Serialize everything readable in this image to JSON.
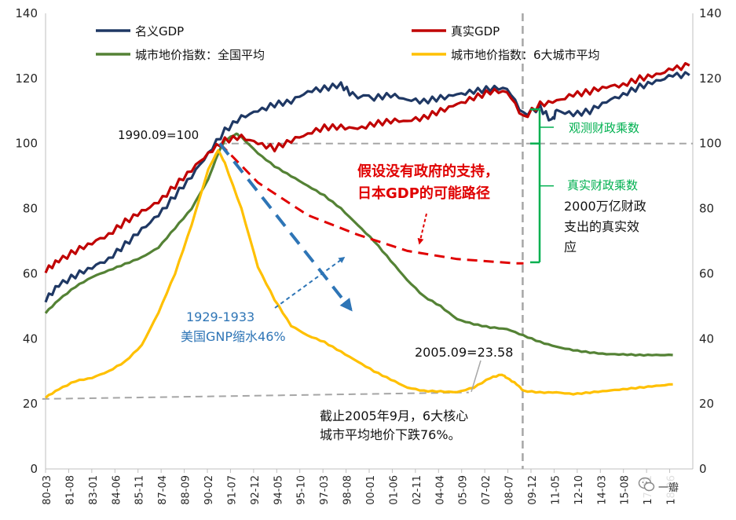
{
  "chart_data": {
    "type": "line",
    "title": "",
    "xlabel": "",
    "ylabel": "",
    "ylim": [
      0,
      140
    ],
    "y2lim": [
      0,
      140
    ],
    "y_ticks": [
      "0",
      "20",
      "40",
      "60",
      "80",
      "100",
      "120",
      "140"
    ],
    "x_ticks": [
      "80-03",
      "81-08",
      "83-01",
      "84-06",
      "85-11",
      "87-04",
      "88-09",
      "90-02",
      "91-07",
      "92-12",
      "94-05",
      "95-10",
      "97-03",
      "98-08",
      "00-01",
      "01-06",
      "02-11",
      "04-04",
      "05-09",
      "07-02",
      "08-07",
      "09-12",
      "11-05",
      "12-10",
      "14-03",
      "15-08",
      "17-01",
      "18-06"
    ],
    "grid": false,
    "legend_position": "top",
    "series": [
      {
        "name": "名义GDP",
        "color": "#1f3864",
        "values": [
          [
            1980.2,
            52
          ],
          [
            1981,
            56.5
          ],
          [
            1982,
            59.5
          ],
          [
            1983,
            62
          ],
          [
            1984,
            64.5
          ],
          [
            1985,
            69
          ],
          [
            1986,
            73.5
          ],
          [
            1987,
            78
          ],
          [
            1988,
            84
          ],
          [
            1989,
            90
          ],
          [
            1990,
            97
          ],
          [
            1991,
            104
          ],
          [
            1992,
            108
          ],
          [
            1993,
            110
          ],
          [
            1994,
            112
          ],
          [
            1995,
            113
          ],
          [
            1996,
            116
          ],
          [
            1997,
            117
          ],
          [
            1998,
            118
          ],
          [
            1998.7,
            115
          ],
          [
            2000,
            114
          ],
          [
            2001,
            115
          ],
          [
            2002,
            113.5
          ],
          [
            2003,
            113
          ],
          [
            2004,
            114
          ],
          [
            2005,
            115
          ],
          [
            2006,
            116
          ],
          [
            2007,
            117
          ],
          [
            2008,
            117
          ],
          [
            2009,
            109
          ],
          [
            2010,
            111
          ],
          [
            2010.7,
            107
          ],
          [
            2011,
            110
          ],
          [
            2012,
            109
          ],
          [
            2013,
            110
          ],
          [
            2014,
            113
          ],
          [
            2015,
            115
          ],
          [
            2016,
            117.5
          ],
          [
            2017,
            119
          ],
          [
            2018,
            121
          ],
          [
            2019,
            121
          ]
        ]
      },
      {
        "name": "真实GDP",
        "color": "#c00000",
        "values": [
          [
            1980.2,
            61
          ],
          [
            1981,
            64
          ],
          [
            1982,
            67
          ],
          [
            1983,
            69.5
          ],
          [
            1984,
            72
          ],
          [
            1985,
            76
          ],
          [
            1986,
            79
          ],
          [
            1987,
            82
          ],
          [
            1988,
            87
          ],
          [
            1989,
            92
          ],
          [
            1990,
            97
          ],
          [
            1991,
            101
          ],
          [
            1992,
            102
          ],
          [
            1993,
            100
          ],
          [
            1994,
            98.5
          ],
          [
            1995,
            101
          ],
          [
            1996,
            103
          ],
          [
            1997,
            105
          ],
          [
            1998,
            105
          ],
          [
            1999,
            104.5
          ],
          [
            2000,
            106
          ],
          [
            2001,
            107
          ],
          [
            2002,
            107
          ],
          [
            2003,
            108
          ],
          [
            2004,
            110
          ],
          [
            2005,
            112
          ],
          [
            2006,
            114
          ],
          [
            2007,
            116
          ],
          [
            2008,
            116
          ],
          [
            2009,
            108
          ],
          [
            2010,
            112
          ],
          [
            2011,
            113
          ],
          [
            2012,
            115
          ],
          [
            2013,
            116
          ],
          [
            2014,
            117.5
          ],
          [
            2015,
            118
          ],
          [
            2016,
            120
          ],
          [
            2017,
            121
          ],
          [
            2018,
            123
          ],
          [
            2019,
            124
          ]
        ]
      },
      {
        "name": "城市地价指数：全国平均",
        "color": "#548235",
        "values": [
          [
            1980.2,
            48
          ],
          [
            1981,
            52
          ],
          [
            1982,
            56
          ],
          [
            1983,
            59
          ],
          [
            1984,
            61
          ],
          [
            1985,
            63
          ],
          [
            1986,
            65
          ],
          [
            1987,
            68
          ],
          [
            1988,
            74
          ],
          [
            1989,
            80
          ],
          [
            1990,
            89
          ],
          [
            1990.6,
            97
          ],
          [
            1991,
            101
          ],
          [
            1991.7,
            103
          ],
          [
            1992,
            102
          ],
          [
            1993,
            97
          ],
          [
            1994,
            93
          ],
          [
            1995,
            90
          ],
          [
            1996,
            87
          ],
          [
            1997,
            84
          ],
          [
            1998,
            80
          ],
          [
            1999,
            75
          ],
          [
            2000,
            70
          ],
          [
            2001,
            64
          ],
          [
            2002,
            58
          ],
          [
            2003,
            53
          ],
          [
            2004,
            50
          ],
          [
            2005,
            46
          ],
          [
            2006,
            44.5
          ],
          [
            2007,
            43.5
          ],
          [
            2008,
            43
          ],
          [
            2009,
            41
          ],
          [
            2010,
            39
          ],
          [
            2011,
            37.5
          ],
          [
            2012,
            36.5
          ],
          [
            2013,
            35.8
          ],
          [
            2014,
            35.3
          ],
          [
            2015,
            35.2
          ],
          [
            2016,
            35
          ],
          [
            2017,
            35
          ],
          [
            2018,
            35
          ]
        ]
      },
      {
        "name": "城市地价指数：6大城市平均",
        "color": "#ffc000",
        "values": [
          [
            1980.2,
            22
          ],
          [
            1981,
            24.5
          ],
          [
            1982,
            27
          ],
          [
            1983,
            28
          ],
          [
            1984,
            30
          ],
          [
            1985,
            33
          ],
          [
            1986,
            38
          ],
          [
            1987,
            48
          ],
          [
            1988,
            60
          ],
          [
            1989,
            75
          ],
          [
            1990,
            92
          ],
          [
            1990.6,
            98
          ],
          [
            1991,
            94
          ],
          [
            1992,
            80
          ],
          [
            1993,
            62
          ],
          [
            1994,
            52
          ],
          [
            1995,
            44
          ],
          [
            1996,
            41
          ],
          [
            1997,
            39
          ],
          [
            1998,
            36
          ],
          [
            1999,
            33
          ],
          [
            2000,
            30
          ],
          [
            2001,
            27.5
          ],
          [
            2002,
            25
          ],
          [
            2003,
            24
          ],
          [
            2004,
            23.8
          ],
          [
            2005,
            23.58
          ],
          [
            2006,
            25
          ],
          [
            2007,
            28
          ],
          [
            2007.7,
            29
          ],
          [
            2008,
            28
          ],
          [
            2008.6,
            26
          ],
          [
            2009,
            24
          ],
          [
            2010,
            23.5
          ],
          [
            2011,
            23.5
          ],
          [
            2012,
            23
          ],
          [
            2013,
            23.5
          ],
          [
            2014,
            24
          ],
          [
            2015,
            24.5
          ],
          [
            2016,
            25
          ],
          [
            2017,
            25.5
          ],
          [
            2018,
            26
          ]
        ]
      }
    ],
    "annotations": {
      "base_label": "1990.09=100",
      "counterfactual_label_line1": "假设没有政府的支持，",
      "counterfactual_label_line2": "日本GDP的可能路径",
      "observed_multiplier": "观测财政乘数",
      "real_multiplier": "真实财政乘数",
      "spending_effect_line1": "2000万亿财政",
      "spending_effect_line2": "支出的真实效",
      "spending_effect_line3": "应",
      "us_years": "1929-1933",
      "us_gnp": "美国GNP缩水46%",
      "point_label": "2005.09=23.58",
      "decline_line1": "截止2005年9月，6大核心",
      "decline_line2": "城市平均地价下跌76%。",
      "counterfactual_path": [
        [
          1990.7,
          100
        ],
        [
          1993,
          88
        ],
        [
          1996,
          78
        ],
        [
          1999,
          72
        ],
        [
          2002,
          67
        ],
        [
          2005,
          64.5
        ],
        [
          2008.5,
          63.2
        ],
        [
          2009,
          63.2
        ]
      ],
      "us_path": [
        [
          1990.7,
          100
        ],
        [
          1998.6,
          49
        ]
      ],
      "reference_level": 100,
      "reference_from_x": 1990.7,
      "floor_path": [
        [
          1980,
          21.5
        ],
        [
          2005.7,
          23.5
        ]
      ],
      "vertical_line_x": 2008.95
    },
    "colors": {
      "annotation_red": "#e00000",
      "annotation_blue": "#2e75b6",
      "annotation_green": "#00b050",
      "dashed_gray": "#a6a6a6"
    }
  },
  "watermark": {
    "text": "一瓣",
    "icon": "wechat-icon"
  }
}
